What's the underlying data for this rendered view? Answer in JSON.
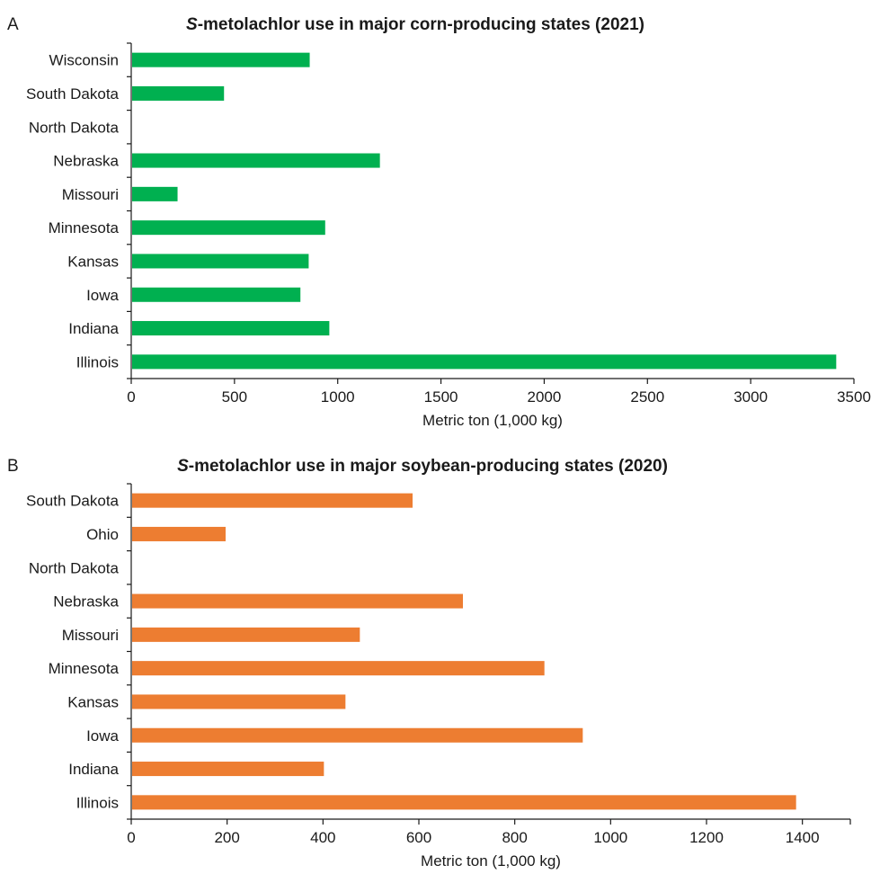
{
  "chart_data": [
    {
      "panel_letter": "A",
      "type": "bar",
      "orientation": "horizontal",
      "title_italic": "S",
      "title_rest": "-metolachlor use in major corn-producing states (2021)",
      "categories": [
        "Wisconsin",
        "South Dakota",
        "North Dakota",
        "Nebraska",
        "Missouri",
        "Minnesota",
        "Kansas",
        "Iowa",
        "Indiana",
        "Illinois"
      ],
      "values": [
        860,
        445,
        0,
        1200,
        220,
        935,
        855,
        815,
        955,
        3410
      ],
      "xlabel": "Metric ton (1,000 kg)",
      "xlim": [
        0,
        3500
      ],
      "xticks": [
        "0",
        "500",
        "1000",
        "1500",
        "2000",
        "2500",
        "3000",
        "3500"
      ],
      "grid": false,
      "bar_color": "#00b050"
    },
    {
      "panel_letter": "B",
      "type": "bar",
      "orientation": "horizontal",
      "title_italic": "S",
      "title_rest": "-metolachlor use in major soybean-producing states (2020)",
      "categories": [
        "South Dakota",
        "Ohio",
        "North Dakota",
        "Nebraska",
        "Missouri",
        "Minnesota",
        "Kansas",
        "Iowa",
        "Indiana",
        "Illinois"
      ],
      "values": [
        585,
        195,
        0,
        690,
        475,
        860,
        445,
        940,
        400,
        1385
      ],
      "xlabel": "Metric ton (1,000 kg)",
      "xlim": [
        0,
        1500
      ],
      "xticks": [
        "0",
        "200",
        "400",
        "600",
        "800",
        "1000",
        "1200",
        "1400"
      ],
      "tick_step": 200,
      "grid": false,
      "bar_color": "#ed7d31"
    }
  ]
}
